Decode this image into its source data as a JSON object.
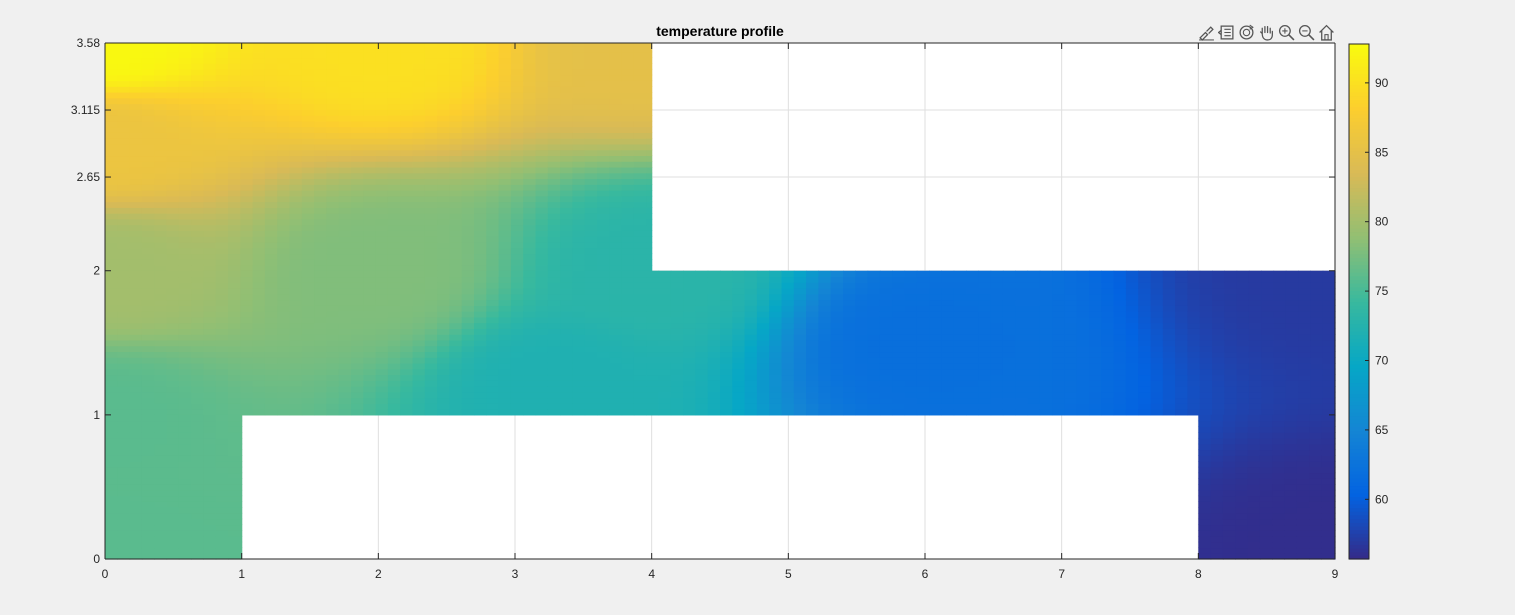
{
  "chart_data": {
    "type": "heatmap",
    "title": "temperature profile",
    "xlabel": "",
    "ylabel": "",
    "xlim": [
      0,
      9
    ],
    "ylim": [
      0,
      3.58
    ],
    "xticks": [
      "0",
      "1",
      "2",
      "3",
      "4",
      "5",
      "6",
      "7",
      "8",
      "9"
    ],
    "yticks": [
      {
        "value": 0,
        "label": "0"
      },
      {
        "value": 1,
        "label": "1"
      },
      {
        "value": 2,
        "label": "2"
      },
      {
        "value": 2.65,
        "label": "2.65"
      },
      {
        "value": 3.115,
        "label": "3.115"
      },
      {
        "value": 3.58,
        "label": "3.58"
      }
    ],
    "grid": true,
    "colormap": "parula",
    "clim": [
      55.7,
      92.8
    ],
    "colorbar_ticks": [
      "60",
      "65",
      "70",
      "75",
      "80",
      "85",
      "90"
    ],
    "domain_regions": [
      {
        "xmin": 0,
        "xmax": 4,
        "ymin": 2,
        "ymax": 3.58
      },
      {
        "xmin": 0,
        "xmax": 9,
        "ymin": 1,
        "ymax": 2
      },
      {
        "xmin": 0,
        "xmax": 1,
        "ymin": 0,
        "ymax": 1
      },
      {
        "xmin": 8,
        "xmax": 9,
        "ymin": 0,
        "ymax": 1
      }
    ],
    "temperature_samples": [
      {
        "x": 0,
        "y": 3.58,
        "value": 92.5
      },
      {
        "x": 0,
        "y": 2.9,
        "value": 86
      },
      {
        "x": 0,
        "y": 2,
        "value": 80
      },
      {
        "x": 0,
        "y": 1,
        "value": 76
      },
      {
        "x": 0,
        "y": 0,
        "value": 76
      },
      {
        "x": 2,
        "y": 3.58,
        "value": 90
      },
      {
        "x": 2,
        "y": 2,
        "value": 78
      },
      {
        "x": 3.3,
        "y": 1.2,
        "value": 72
      },
      {
        "x": 4,
        "y": 3.58,
        "value": 85
      },
      {
        "x": 4,
        "y": 2,
        "value": 73
      },
      {
        "x": 6,
        "y": 1.5,
        "value": 62
      },
      {
        "x": 9,
        "y": 2,
        "value": 57
      },
      {
        "x": 9,
        "y": 0,
        "value": 56
      }
    ]
  },
  "colors": {
    "background": "#f0f0f0",
    "axes_background": "#ffffff",
    "grid": "#dfdfdf",
    "parula_stops": [
      "#352a87",
      "#0363e1",
      "#1485d4",
      "#06a7c6",
      "#38b99e",
      "#92bf73",
      "#d9ba56",
      "#fcce2e",
      "#f9fb0e"
    ]
  },
  "toolbar": {
    "icons": [
      "brush-icon",
      "data-tips-icon",
      "rotate-icon",
      "pan-icon",
      "zoom-in-icon",
      "zoom-out-icon",
      "home-icon"
    ]
  }
}
